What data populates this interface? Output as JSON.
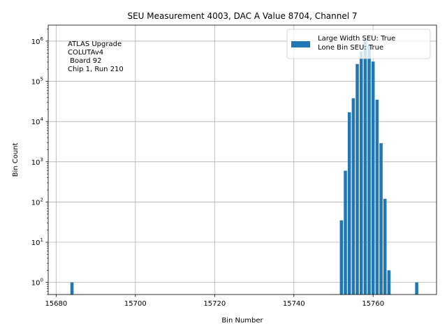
{
  "chart_data": {
    "type": "bar",
    "title": "SEU Measurement 4003, DAC A Value 8704, Channel 7",
    "xlabel": "Bin Number",
    "ylabel": "Bin Count",
    "yscale": "log",
    "xlim": [
      15678,
      15776
    ],
    "ylim": [
      0.5,
      2500000
    ],
    "grid": true,
    "bar_color": "#1f77b4",
    "xticks": [
      15680,
      15700,
      15720,
      15740,
      15760
    ],
    "yticks": [
      {
        "value": 1,
        "base": "10",
        "exp": "0"
      },
      {
        "value": 10,
        "base": "10",
        "exp": "1"
      },
      {
        "value": 100,
        "base": "10",
        "exp": "2"
      },
      {
        "value": 1000,
        "base": "10",
        "exp": "3"
      },
      {
        "value": 10000,
        "base": "10",
        "exp": "4"
      },
      {
        "value": 100000,
        "base": "10",
        "exp": "5"
      },
      {
        "value": 1000000,
        "base": "10",
        "exp": "6"
      }
    ],
    "annotation": [
      "ATLAS Upgrade",
      "COLUTAv4",
      " Board 92",
      "Chip 1, Run 210"
    ],
    "legend": {
      "placement": "top-right",
      "lines": [
        "Large Width SEU: True",
        "Lone Bin SEU: True"
      ]
    },
    "bins": [
      15684,
      15752,
      15753,
      15754,
      15755,
      15756,
      15757,
      15758,
      15759,
      15760,
      15761,
      15762,
      15763,
      15764,
      15771
    ],
    "values": [
      1,
      35,
      600,
      17000,
      38000,
      270000,
      550000,
      1100000,
      800000,
      310000,
      35000,
      2900,
      120,
      2,
      1
    ]
  }
}
